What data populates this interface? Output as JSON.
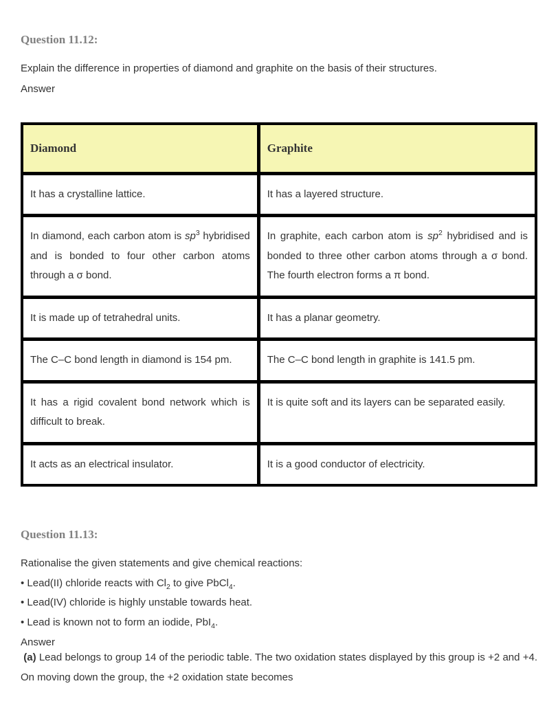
{
  "q12": {
    "heading": "Question 11.12:",
    "prompt": "Explain the difference in properties of diamond and graphite on the basis of their structures.",
    "answer_label": "Answer",
    "table": {
      "header_left": "Diamond",
      "header_right": "Graphite",
      "rows": [
        {
          "left_plain": "It has a crystalline lattice.",
          "right_plain": "It has a layered structure."
        },
        {
          "left_pre": "In diamond, each carbon atom is ",
          "left_sp": "sp",
          "left_sup": "3",
          "left_post": " hybridised and is bonded to four other carbon atoms through a σ bond.",
          "right_pre": "In graphite, each carbon atom is ",
          "right_sp": "sp",
          "right_sup": "2",
          "right_post": " hybridised and is bonded to three other carbon atoms through a σ bond. The fourth electron forms a π bond."
        },
        {
          "left_plain": "It is made up of tetrahedral units.",
          "right_plain": "It has a planar geometry."
        },
        {
          "left_plain": "The C–C bond length in diamond is 154 pm.",
          "right_plain": "The C–C bond length in graphite is 141.5 pm."
        },
        {
          "left_plain": "It has a rigid covalent bond network which is difficult to break.",
          "right_plain": "It is quite soft and its layers can be separated easily."
        },
        {
          "left_plain": "It acts as an electrical insulator.",
          "right_plain": "It is a good conductor of electricity."
        }
      ]
    }
  },
  "q13": {
    "heading": "Question 11.13:",
    "prompt": "Rationalise the given statements and give chemical reactions:",
    "bullets": [
      {
        "pre": "• Lead(II) chloride reacts with Cl",
        "sub1": "2",
        "mid": " to give PbCl",
        "sub2": "4",
        "post": "."
      },
      {
        "plain": "• Lead(IV) chloride is highly unstable towards heat."
      },
      {
        "pre": "• Lead is known not to form an iodide, PbI",
        "sub1": "4",
        "post": "."
      }
    ],
    "answer_label": "Answer",
    "answer_a_label": "(a)",
    "answer_a_text": " Lead belongs to group 14 of the periodic table. The two oxidation states displayed by this group is +2 and +4. On moving down the group, the +2 oxidation state becomes"
  },
  "style": {
    "header_bg": "#f6f6b4",
    "border_color": "#000000",
    "heading_color": "#808080",
    "text_color": "#333333",
    "page_bg": "#ffffff"
  }
}
